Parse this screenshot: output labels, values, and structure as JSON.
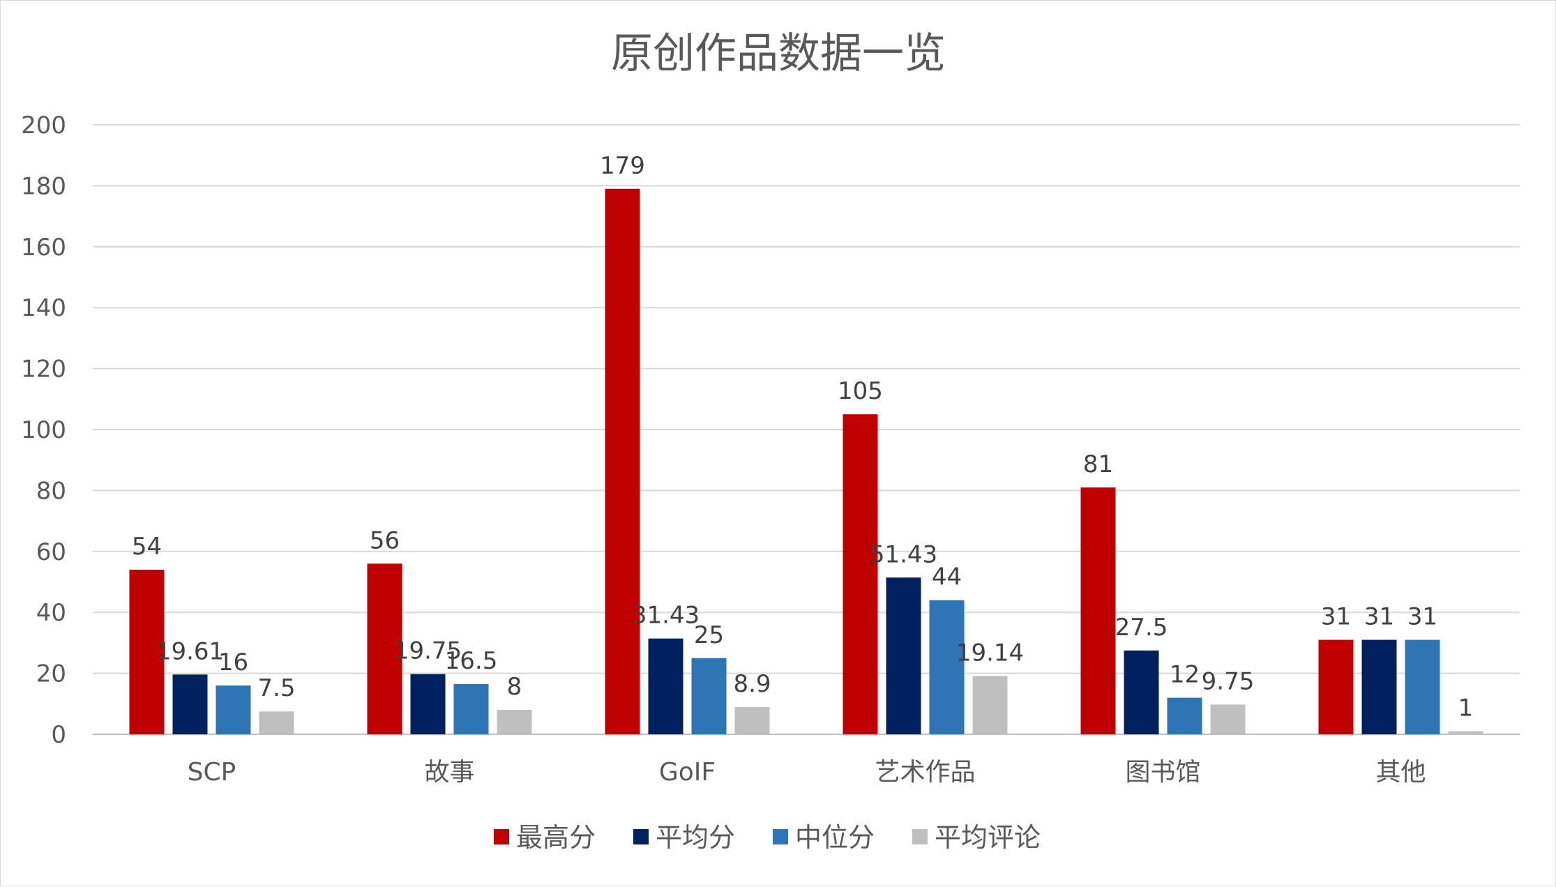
{
  "chart_data": {
    "type": "bar",
    "title": "原创作品数据一览",
    "xlabel": "",
    "ylabel": "",
    "ylim": [
      0,
      200
    ],
    "yticks": [
      0,
      20,
      40,
      60,
      80,
      100,
      120,
      140,
      160,
      180,
      200
    ],
    "grid": true,
    "legend_position": "bottom",
    "categories": [
      "SCP",
      "故事",
      "GoIF",
      "艺术作品",
      "图书馆",
      "其他"
    ],
    "series": [
      {
        "name": "最高分",
        "color": "#c00000",
        "values": [
          54,
          56,
          179,
          105,
          81,
          31
        ],
        "labels": [
          "54",
          "56",
          "179",
          "105",
          "81",
          "31"
        ]
      },
      {
        "name": "平均分",
        "color": "#002060",
        "values": [
          19.61,
          19.75,
          31.43,
          51.43,
          27.5,
          31
        ],
        "labels": [
          "19.61",
          "19.75",
          "31.43",
          "51.43",
          "27.5",
          "31"
        ]
      },
      {
        "name": "中位分",
        "color": "#2e75b6",
        "values": [
          16,
          16.5,
          25,
          44,
          12,
          31
        ],
        "labels": [
          "16",
          "16.5",
          "25",
          "44",
          "12",
          "31"
        ]
      },
      {
        "name": "平均评论",
        "color": "#bfbfbf",
        "values": [
          7.5,
          8,
          8.9,
          19.14,
          9.75,
          1
        ],
        "labels": [
          "7.5",
          "8",
          "8.9",
          "19.14",
          "9.75",
          "1"
        ]
      }
    ]
  }
}
